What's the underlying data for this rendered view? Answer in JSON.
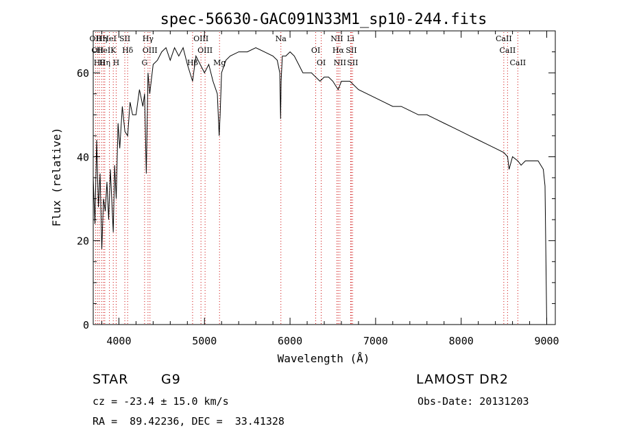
{
  "chart_data": {
    "type": "line",
    "title": "spec-56630-GAC091N33M1_sp10-244.fits",
    "xlabel": "Wavelength (Å)",
    "ylabel": "Flux (relative)",
    "xlim": [
      3700,
      9100
    ],
    "ylim": [
      0,
      70
    ],
    "xticks": [
      4000,
      5000,
      6000,
      7000,
      8000,
      9000
    ],
    "xtick_labels": [
      "4000",
      "5000",
      "6000",
      "7000",
      "8000",
      "9000"
    ],
    "yticks": [
      0,
      20,
      40,
      60
    ],
    "ytick_labels": [
      "0",
      "20",
      "40",
      "60"
    ],
    "grid": false,
    "line_color": "#000000",
    "marker_line_color": "#cc0000",
    "series": [
      {
        "x": [
          3700,
          3720,
          3740,
          3760,
          3780,
          3800,
          3820,
          3840,
          3860,
          3880,
          3900,
          3920,
          3934,
          3950,
          3968,
          3990,
          4010,
          4040,
          4070,
          4102,
          4130,
          4160,
          4200,
          4240,
          4280,
          4300,
          4320,
          4340,
          4360,
          4400,
          4450,
          4500,
          4550,
          4600,
          4650,
          4700,
          4750,
          4800,
          4861,
          4900,
          4950,
          5000,
          5050,
          5100,
          5150,
          5172,
          5183,
          5200,
          5250,
          5300,
          5400,
          5500,
          5600,
          5700,
          5800,
          5850,
          5880,
          5890,
          5896,
          5910,
          5950,
          6000,
          6050,
          6100,
          6150,
          6200,
          6250,
          6300,
          6350,
          6400,
          6450,
          6500,
          6563,
          6600,
          6650,
          6700,
          6800,
          6900,
          7000,
          7100,
          7200,
          7300,
          7400,
          7500,
          7600,
          7700,
          7800,
          7900,
          8000,
          8100,
          8200,
          8300,
          8400,
          8498,
          8542,
          8560,
          8600,
          8662,
          8700,
          8750,
          8800,
          8850,
          8900,
          8930,
          8960,
          8980,
          9000
        ],
        "y": [
          35,
          24,
          44,
          28,
          36,
          18,
          30,
          27,
          34,
          25,
          37,
          28,
          22,
          38,
          30,
          48,
          42,
          52,
          46,
          45,
          53,
          50,
          50,
          56,
          52,
          55,
          36,
          60,
          55,
          62,
          63,
          65,
          66,
          63,
          66,
          64,
          66,
          62,
          58,
          64,
          62,
          60,
          62,
          58,
          55,
          45,
          50,
          60,
          63,
          64,
          65,
          65,
          66,
          65,
          64,
          63,
          60,
          49,
          58,
          64,
          64,
          65,
          64,
          62,
          60,
          60,
          60,
          59,
          58,
          59,
          59,
          58,
          56,
          58,
          58,
          58,
          56,
          55,
          54,
          53,
          52,
          52,
          51,
          50,
          50,
          49,
          48,
          47,
          46,
          45,
          44,
          43,
          42,
          41,
          40,
          37,
          40,
          39,
          38,
          39,
          39,
          39,
          39,
          38,
          37,
          33,
          0
        ]
      }
    ],
    "line_markers": [
      {
        "wavelength": 3727,
        "label": "OII"
      },
      {
        "wavelength": 3750,
        "label": "OII"
      },
      {
        "wavelength": 3771,
        "label": "Hθ"
      },
      {
        "wavelength": 3798,
        "label": "Hη"
      },
      {
        "wavelength": 3820,
        "label": "HeI"
      },
      {
        "wavelength": 3835,
        "label": "Hη"
      },
      {
        "wavelength": 3889,
        "label": "HeI"
      },
      {
        "wavelength": 3934,
        "label": "K"
      },
      {
        "wavelength": 3968,
        "label": "H"
      },
      {
        "wavelength": 4069,
        "label": "SII"
      },
      {
        "wavelength": 4102,
        "label": "Hδ"
      },
      {
        "wavelength": 4300,
        "label": "G"
      },
      {
        "wavelength": 4340,
        "label": "Hγ"
      },
      {
        "wavelength": 4363,
        "label": "OIII"
      },
      {
        "wavelength": 4861,
        "label": "Hβ"
      },
      {
        "wavelength": 4959,
        "label": "OIII"
      },
      {
        "wavelength": 5007,
        "label": "OIII"
      },
      {
        "wavelength": 5176,
        "label": "Mg"
      },
      {
        "wavelength": 5893,
        "label": "Na"
      },
      {
        "wavelength": 6300,
        "label": "OI"
      },
      {
        "wavelength": 6364,
        "label": "OI"
      },
      {
        "wavelength": 6548,
        "label": "NII"
      },
      {
        "wavelength": 6563,
        "label": "Hα"
      },
      {
        "wavelength": 6583,
        "label": "NII"
      },
      {
        "wavelength": 6708,
        "label": "Li"
      },
      {
        "wavelength": 6716,
        "label": "SII"
      },
      {
        "wavelength": 6731,
        "label": "SII"
      },
      {
        "wavelength": 8498,
        "label": "CaII"
      },
      {
        "wavelength": 8542,
        "label": "CaII"
      },
      {
        "wavelength": 8662,
        "label": "CaII"
      }
    ]
  },
  "info": {
    "class_label": "STAR",
    "subclass": "G9",
    "survey": "LAMOST DR2",
    "redshift": "cz = -23.4 ± 15.0 km/s",
    "obs_date": "Obs-Date: 20131203",
    "coords": "RA =  89.42236, DEC =  33.41328"
  }
}
